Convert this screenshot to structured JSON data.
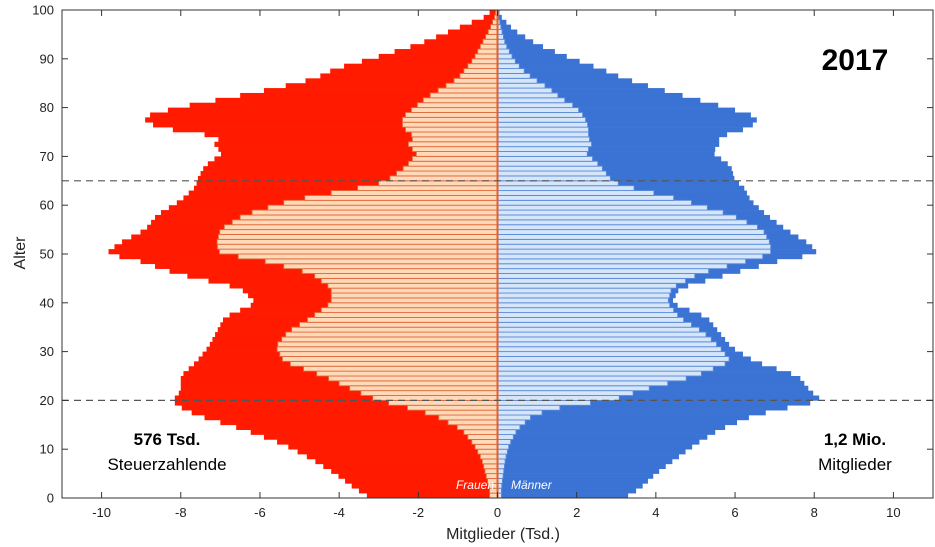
{
  "chart_data": {
    "type": "bar",
    "orientation": "horizontal",
    "title": "2017",
    "xlabel": "Mitglieder (Tsd.)",
    "ylabel": "Alter",
    "xlim": [
      -11,
      11
    ],
    "ylim": [
      0,
      100
    ],
    "x_ticks": [
      -10,
      -8,
      -6,
      -4,
      -2,
      0,
      2,
      4,
      6,
      8,
      10
    ],
    "x_tick_labels": [
      "-10",
      "-8",
      "-6",
      "-4",
      "-2",
      "0",
      "2",
      "4",
      "6",
      "8",
      "10"
    ],
    "y_ticks": [
      0,
      10,
      20,
      30,
      40,
      50,
      60,
      70,
      80,
      90,
      100
    ],
    "y_tick_labels": [
      "0",
      "10",
      "20",
      "30",
      "40",
      "50",
      "60",
      "70",
      "80",
      "90",
      "100"
    ],
    "reference_lines_age": [
      20,
      65
    ],
    "annotations": {
      "left_value": "576 Tsd.",
      "left_label": "Steuerzahlende",
      "right_value": "1,2 Mio.",
      "right_label": "Mitglieder",
      "women_label": "Frauen",
      "men_label": "Männer"
    },
    "colors": {
      "women_members": "#ff1a00",
      "men_members": "#3a73d4",
      "women_taxpayers": "#ffd9b8",
      "men_taxpayers": "#d6e6fa",
      "women_stripe": "#e06a3c",
      "men_stripe": "#5a8ad8",
      "reference_line": "#555555"
    },
    "series": [
      {
        "name": "Frauen",
        "side": "left",
        "ages": [
          0,
          2,
          5,
          8,
          11,
          14,
          17,
          19,
          20,
          22,
          25,
          28,
          31,
          34,
          37,
          40,
          43,
          46,
          49,
          50,
          52,
          55,
          58,
          61,
          64,
          65,
          68,
          71,
          72,
          74,
          76,
          78,
          80,
          82,
          84,
          86,
          88,
          90,
          93,
          96,
          99
        ],
        "members": [
          3.2,
          3.6,
          4.1,
          4.7,
          5.4,
          6.4,
          7.6,
          8.1,
          8.2,
          8.0,
          8.0,
          7.6,
          7.3,
          7.1,
          6.9,
          6.1,
          6.5,
          8.1,
          9.2,
          9.9,
          9.6,
          8.9,
          8.6,
          8.0,
          7.6,
          7.6,
          7.4,
          6.9,
          7.2,
          7.0,
          8.6,
          9.0,
          8.1,
          6.8,
          5.6,
          4.6,
          4.1,
          3.2,
          2.0,
          1.1,
          0.2
        ],
        "taxpayers": [
          0.2,
          0.2,
          0.3,
          0.4,
          0.6,
          0.9,
          1.6,
          2.5,
          3.0,
          3.6,
          4.4,
          5.4,
          5.6,
          5.3,
          4.7,
          4.2,
          4.2,
          4.7,
          6.1,
          7.0,
          7.1,
          7.0,
          6.4,
          5.2,
          3.2,
          2.8,
          2.3,
          2.0,
          2.3,
          2.1,
          2.4,
          2.4,
          2.1,
          1.8,
          1.4,
          1.0,
          0.8,
          0.6,
          0.4,
          0.2,
          0.05
        ]
      },
      {
        "name": "Männer",
        "side": "right",
        "ages": [
          0,
          2,
          5,
          8,
          11,
          14,
          17,
          19,
          20,
          22,
          25,
          28,
          31,
          34,
          37,
          40,
          43,
          46,
          49,
          50,
          52,
          55,
          58,
          61,
          64,
          65,
          68,
          71,
          72,
          74,
          76,
          78,
          80,
          82,
          84,
          86,
          88,
          90,
          93,
          96,
          99
        ],
        "members": [
          3.2,
          3.6,
          4.0,
          4.5,
          5.0,
          5.6,
          6.5,
          7.6,
          8.2,
          7.9,
          7.6,
          6.5,
          5.9,
          5.6,
          5.3,
          4.4,
          4.6,
          5.9,
          7.3,
          8.1,
          7.9,
          7.3,
          6.8,
          6.4,
          6.2,
          6.0,
          5.9,
          5.4,
          5.6,
          5.6,
          6.4,
          6.6,
          5.8,
          4.9,
          4.0,
          3.2,
          2.6,
          1.9,
          1.0,
          0.4,
          0.05
        ],
        "taxpayers": [
          0.1,
          0.1,
          0.15,
          0.2,
          0.3,
          0.5,
          0.9,
          1.8,
          2.9,
          3.6,
          5.0,
          5.9,
          5.6,
          5.2,
          4.6,
          4.3,
          4.4,
          5.1,
          6.5,
          6.9,
          6.9,
          6.7,
          5.9,
          4.7,
          3.2,
          2.9,
          2.6,
          2.2,
          2.4,
          2.3,
          2.3,
          2.2,
          2.0,
          1.6,
          1.3,
          0.9,
          0.6,
          0.4,
          0.2,
          0.1,
          0.02
        ]
      }
    ]
  }
}
